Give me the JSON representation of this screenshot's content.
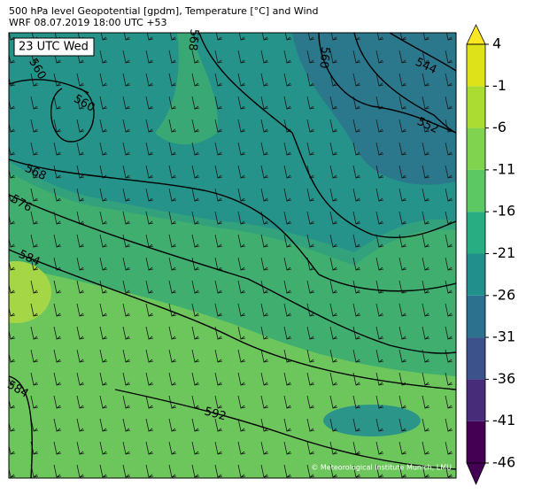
{
  "header": {
    "line1": "500 hPa level Geopotential [gpdm], Temperature [°C] and Wind",
    "line2": "WRF 08.07.2019 18:00 UTC +53"
  },
  "time_label": "23 UTC Wed",
  "contour_labels": [
    "560",
    "560",
    "568",
    "576",
    "584",
    "584",
    "592",
    "568",
    "560",
    "544",
    "552"
  ],
  "credit": "© Meteorological Institute Munich, LMU",
  "colorbar": {
    "ticks": [
      4,
      -1,
      -6,
      -11,
      -16,
      -21,
      -26,
      -31,
      -36,
      -41,
      -46
    ],
    "ylim": [
      -46,
      4
    ],
    "colors": [
      "#440154",
      "#472c7a",
      "#3b528b",
      "#2c728e",
      "#21908d",
      "#27ad81",
      "#5cc863",
      "#7fd34e",
      "#aadc32",
      "#dde318"
    ],
    "over_color": "#fde725",
    "under_color": "#440154"
  }
}
